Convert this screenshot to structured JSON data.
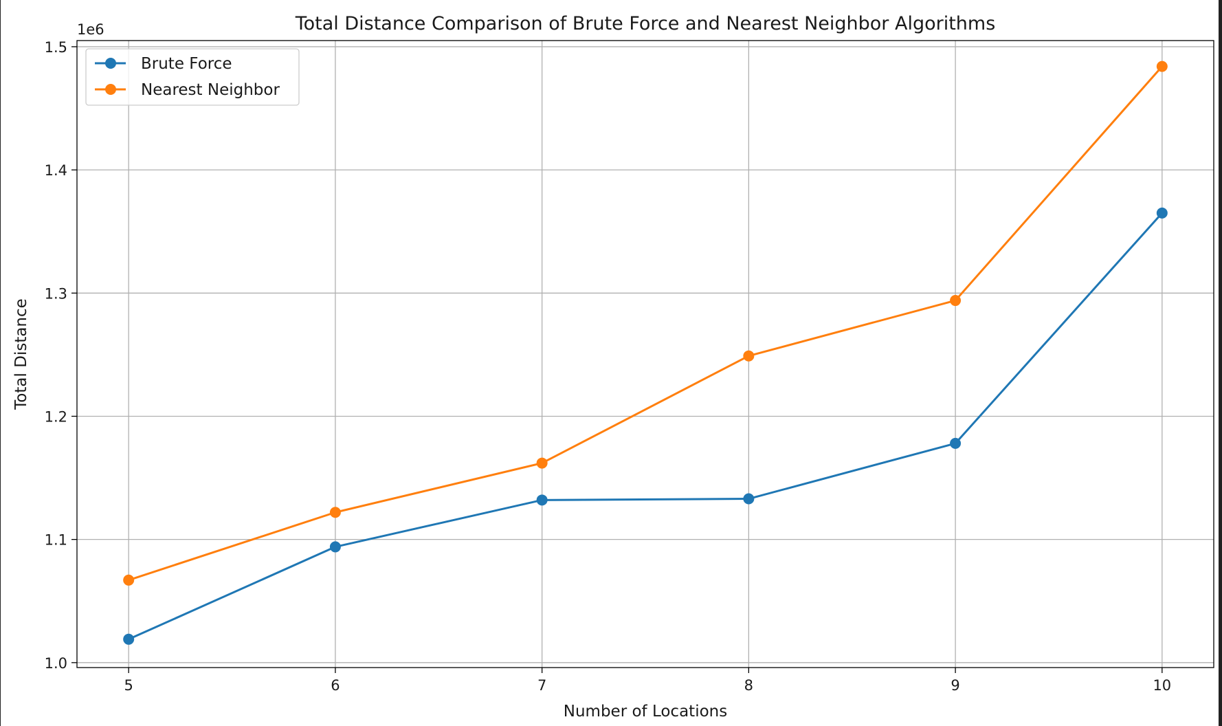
{
  "chart_data": {
    "type": "line",
    "title": "Total Distance Comparison of Brute Force and Nearest Neighbor Algorithms",
    "xlabel": "Number of Locations",
    "ylabel": "Total Distance",
    "y_offset_label": "1e6",
    "x": [
      5,
      6,
      7,
      8,
      9,
      10
    ],
    "xticks": [
      "5",
      "6",
      "7",
      "8",
      "9",
      "10"
    ],
    "yticks": [
      "1.0",
      "1.1",
      "1.2",
      "1.3",
      "1.4",
      "1.5"
    ],
    "ylim": [
      0.996,
      1.505
    ],
    "xlim": [
      4.75,
      10.25
    ],
    "grid": true,
    "legend_position": "upper-left",
    "series": [
      {
        "name": "Brute Force",
        "color": "#1f77b4",
        "marker": "circle",
        "values": [
          1.019,
          1.094,
          1.132,
          1.133,
          1.178,
          1.365
        ]
      },
      {
        "name": "Nearest Neighbor",
        "color": "#ff7f0e",
        "marker": "circle",
        "values": [
          1.067,
          1.122,
          1.162,
          1.249,
          1.294,
          1.484
        ]
      }
    ]
  }
}
